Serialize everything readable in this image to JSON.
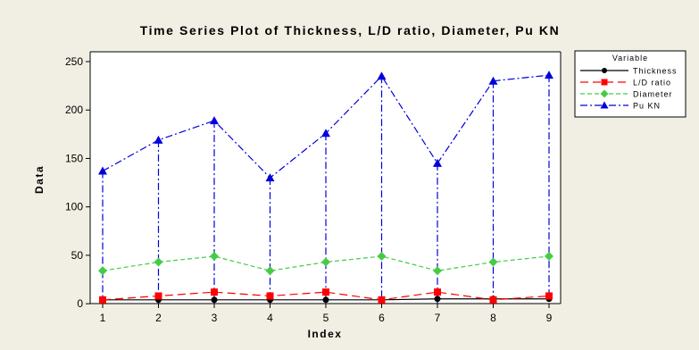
{
  "chart_data": {
    "type": "line",
    "title": "Time Series Plot of Thickness, L/D ratio, Diameter, Pu KN",
    "xlabel": "Index",
    "ylabel": "Data",
    "categories": [
      1,
      2,
      3,
      4,
      5,
      6,
      7,
      8,
      9
    ],
    "ylim": [
      -10,
      250
    ],
    "yticks": [
      0,
      50,
      100,
      150,
      200,
      250
    ],
    "grid": false,
    "legend": {
      "title": "Variable",
      "placement": "right"
    },
    "series": [
      {
        "name": "Thickness",
        "color": "#000000",
        "marker": "circle",
        "line": "solid",
        "values": [
          4,
          4,
          4,
          4,
          4,
          4,
          5,
          5,
          5
        ]
      },
      {
        "name": "L/D ratio",
        "color": "#ff0000",
        "marker": "square",
        "line": "long-dash",
        "values": [
          4,
          8,
          12,
          8,
          12,
          4,
          12,
          4,
          8
        ]
      },
      {
        "name": "Diameter",
        "color": "#44cc44",
        "marker": "diamond",
        "line": "short-dash",
        "values": [
          34,
          43,
          49,
          34,
          43,
          49,
          34,
          43,
          49
        ]
      },
      {
        "name": "Pu KN",
        "color": "#0000dd",
        "marker": "triangle",
        "line": "dash-dot",
        "values": [
          137,
          169,
          189,
          130,
          176,
          235,
          145,
          230,
          236
        ]
      }
    ]
  }
}
